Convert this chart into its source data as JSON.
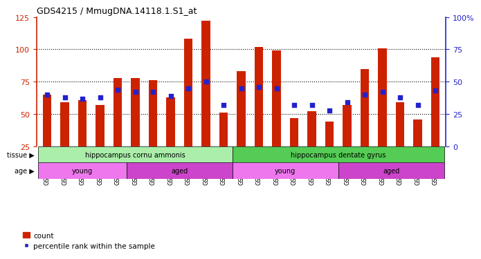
{
  "title": "GDS4215 / MmugDNA.14118.1.S1_at",
  "samples": [
    "GSM297138",
    "GSM297139",
    "GSM297140",
    "GSM297141",
    "GSM297142",
    "GSM297143",
    "GSM297144",
    "GSM297145",
    "GSM297146",
    "GSM297147",
    "GSM297148",
    "GSM297149",
    "GSM297150",
    "GSM297151",
    "GSM297152",
    "GSM297153",
    "GSM297154",
    "GSM297155",
    "GSM297156",
    "GSM297157",
    "GSM297158",
    "GSM297159",
    "GSM297160"
  ],
  "counts": [
    65,
    59,
    61,
    57,
    78,
    78,
    76,
    63,
    108,
    122,
    51,
    83,
    102,
    99,
    47,
    52,
    44,
    57,
    85,
    101,
    59,
    46,
    94
  ],
  "percentile_y_left_scale": [
    65,
    63,
    62,
    63,
    69,
    67,
    67,
    64,
    70,
    75,
    57,
    70,
    71,
    70,
    57,
    57,
    53,
    59,
    65,
    67,
    63,
    57,
    68
  ],
  "bar_color": "#cc2200",
  "dot_color": "#2222cc",
  "ylim_left": [
    25,
    125
  ],
  "ylim_right": [
    0,
    100
  ],
  "yticks_left": [
    25,
    50,
    75,
    100,
    125
  ],
  "yticks_right": [
    0,
    25,
    50,
    75,
    100
  ],
  "yticklabels_right": [
    "0",
    "25",
    "50",
    "75",
    "100%"
  ],
  "grid_lines": [
    50,
    75,
    100
  ],
  "tissue_groups": [
    {
      "label": "hippocampus cornu ammonis",
      "start": 0,
      "end": 11,
      "color": "#aaeeaa"
    },
    {
      "label": "hippocampus dentate gyrus",
      "start": 11,
      "end": 23,
      "color": "#55cc55"
    }
  ],
  "age_groups": [
    {
      "label": "young",
      "start": 0,
      "end": 5,
      "color": "#ee77ee"
    },
    {
      "label": "aged",
      "start": 5,
      "end": 11,
      "color": "#cc44cc"
    },
    {
      "label": "young",
      "start": 11,
      "end": 17,
      "color": "#ee77ee"
    },
    {
      "label": "aged",
      "start": 17,
      "end": 23,
      "color": "#cc44cc"
    }
  ],
  "background_color": "#ffffff",
  "legend_count_label": "count",
  "legend_percentile_label": "percentile rank within the sample",
  "bar_bottom": 25
}
